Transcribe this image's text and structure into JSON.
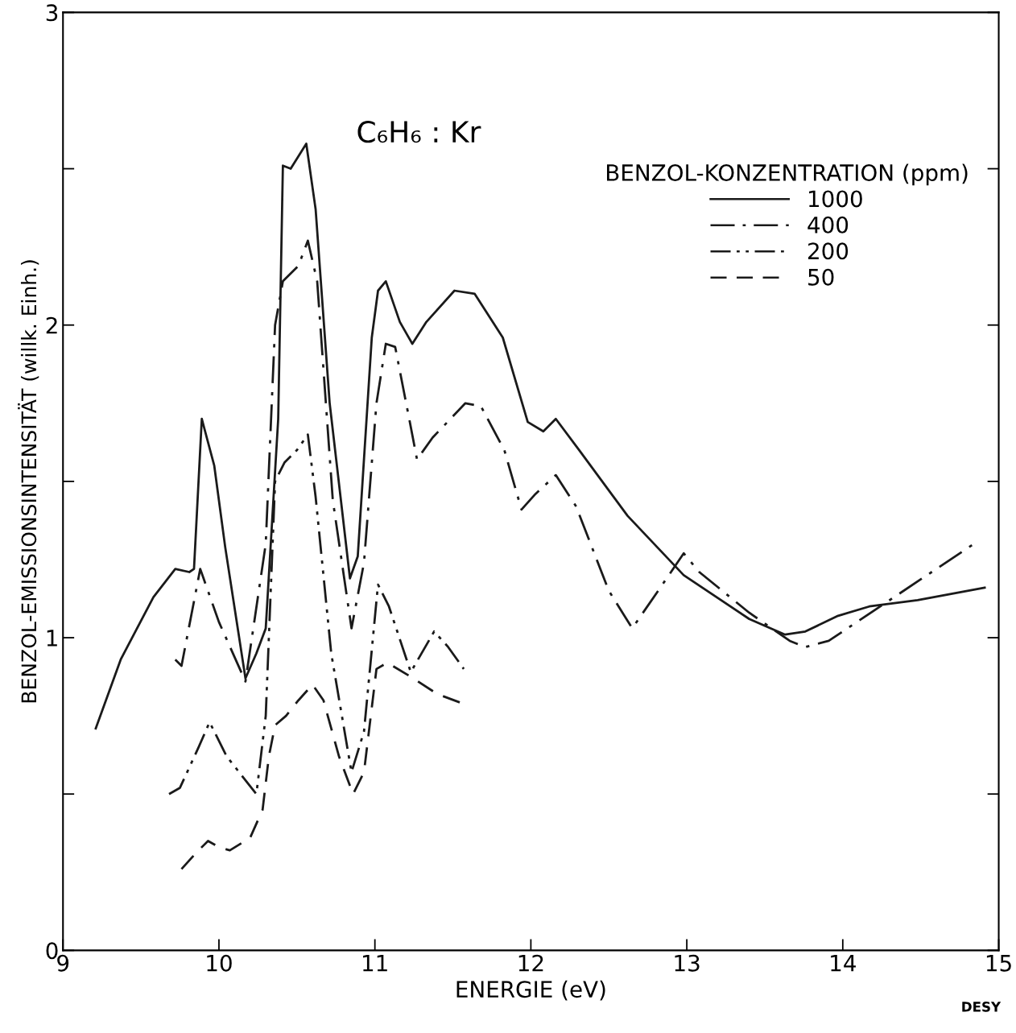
{
  "chart_data": {
    "type": "line",
    "title": "C₆H₆ : Kr",
    "xlabel": "ENERGIE (eV)",
    "ylabel": "BENZOL-EMISSIONSINTENSITÄT (willk. Einh.)",
    "legend_title": "BENZOL-KONZENTRATION (ppm)",
    "legend": "top right",
    "grid": false,
    "xlim": [
      9,
      15
    ],
    "xticks": [
      9,
      10,
      11,
      12,
      13,
      14,
      15
    ],
    "ylim": [
      0,
      3
    ],
    "yticks": [
      0,
      {
        "value": 0.5,
        "label": null
      },
      1,
      {
        "value": 1.5,
        "label": null
      },
      2,
      {
        "value": 2.5,
        "label": null
      },
      3
    ],
    "annotations": [
      "DESY"
    ],
    "series": [
      {
        "name": "1000",
        "color": "#1a1a1a",
        "line_style": "solid",
        "x": [
          9.21,
          9.37,
          9.58,
          9.72,
          9.81,
          9.84,
          9.89,
          9.97,
          10.04,
          10.17,
          10.24,
          10.3,
          10.38,
          10.41,
          10.46,
          10.56,
          10.62,
          10.71,
          10.84,
          10.89,
          10.98,
          11.02,
          11.07,
          11.16,
          11.24,
          11.33,
          11.51,
          11.64,
          11.82,
          11.98,
          12.08,
          12.16,
          12.31,
          12.62,
          12.98,
          13.4,
          13.63,
          13.76,
          13.97,
          14.17,
          14.48,
          14.91
        ],
        "values": [
          0.71,
          0.93,
          1.13,
          1.22,
          1.21,
          1.22,
          1.7,
          1.55,
          1.29,
          0.87,
          0.95,
          1.03,
          1.7,
          2.51,
          2.5,
          2.58,
          2.37,
          1.75,
          1.19,
          1.26,
          1.96,
          2.11,
          2.14,
          2.01,
          1.94,
          2.01,
          2.11,
          2.1,
          1.96,
          1.69,
          1.66,
          1.7,
          1.6,
          1.39,
          1.2,
          1.06,
          1.01,
          1.02,
          1.07,
          1.1,
          1.12,
          1.16
        ]
      },
      {
        "name": "400",
        "color": "#1a1a1a",
        "line_style": "dashdot",
        "x": [
          9.72,
          9.76,
          9.88,
          10.0,
          10.17,
          10.3,
          10.36,
          10.41,
          10.51,
          10.57,
          10.63,
          10.73,
          10.85,
          10.93,
          11.01,
          11.07,
          11.13,
          11.22,
          11.27,
          11.37,
          11.58,
          11.68,
          11.83,
          11.94,
          12.03,
          12.16,
          12.29,
          12.5,
          12.65,
          12.83,
          12.98,
          13.08,
          13.4,
          13.66,
          13.76,
          13.91,
          14.27,
          14.84
        ],
        "values": [
          0.93,
          0.91,
          1.22,
          1.05,
          0.86,
          1.3,
          2.0,
          2.14,
          2.19,
          2.27,
          2.14,
          1.44,
          1.03,
          1.24,
          1.75,
          1.94,
          1.93,
          1.7,
          1.57,
          1.64,
          1.75,
          1.74,
          1.6,
          1.41,
          1.46,
          1.52,
          1.42,
          1.15,
          1.03,
          1.16,
          1.27,
          1.21,
          1.08,
          0.99,
          0.97,
          0.99,
          1.11,
          1.3
        ]
      },
      {
        "name": "200",
        "color": "#1a1a1a",
        "line_style": "dashdotdot",
        "x": [
          9.68,
          9.75,
          9.87,
          9.94,
          10.05,
          10.24,
          10.3,
          10.36,
          10.42,
          10.5,
          10.57,
          10.62,
          10.72,
          10.85,
          10.93,
          11.02,
          11.09,
          11.23,
          11.38,
          11.47,
          11.57
        ],
        "values": [
          0.5,
          0.52,
          0.65,
          0.73,
          0.62,
          0.5,
          0.75,
          1.5,
          1.56,
          1.6,
          1.65,
          1.45,
          0.95,
          0.57,
          0.7,
          1.17,
          1.1,
          0.89,
          1.02,
          0.97,
          0.9
        ]
      },
      {
        "name": "50",
        "color": "#1a1a1a",
        "line_style": "dashed",
        "x": [
          9.76,
          9.85,
          9.93,
          10.0,
          10.07,
          10.2,
          10.28,
          10.32,
          10.36,
          10.43,
          10.51,
          10.6,
          10.67,
          10.77,
          10.86,
          10.93,
          11.01,
          11.08,
          11.23,
          11.4,
          11.56
        ],
        "values": [
          0.26,
          0.31,
          0.35,
          0.33,
          0.32,
          0.36,
          0.45,
          0.62,
          0.72,
          0.75,
          0.8,
          0.85,
          0.8,
          0.62,
          0.5,
          0.57,
          0.9,
          0.92,
          0.875,
          0.82,
          0.79
        ]
      }
    ]
  }
}
